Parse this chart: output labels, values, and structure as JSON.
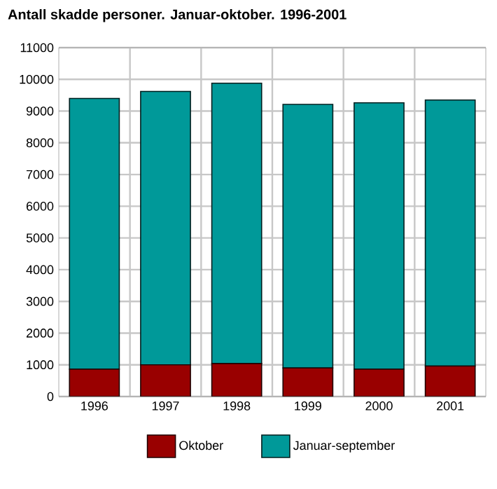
{
  "chart_data": {
    "type": "bar",
    "title": "Antall skadde personer. Januar-oktober. 1996-2001",
    "categories": [
      "1996",
      "1997",
      "1998",
      "1999",
      "2000",
      "2001"
    ],
    "series": [
      {
        "name": "Oktober",
        "color": "#990000",
        "values": [
          860,
          1000,
          1040,
          900,
          860,
          960
        ]
      },
      {
        "name": "Januar-september",
        "color": "#009999",
        "values": [
          8540,
          8620,
          8840,
          8310,
          8400,
          8390
        ]
      }
    ],
    "stacked": true,
    "ylim": [
      0,
      11000
    ],
    "yticks": [
      0,
      1000,
      2000,
      3000,
      4000,
      5000,
      6000,
      7000,
      8000,
      9000,
      10000,
      11000
    ],
    "grid": true,
    "legend": "bottom"
  }
}
